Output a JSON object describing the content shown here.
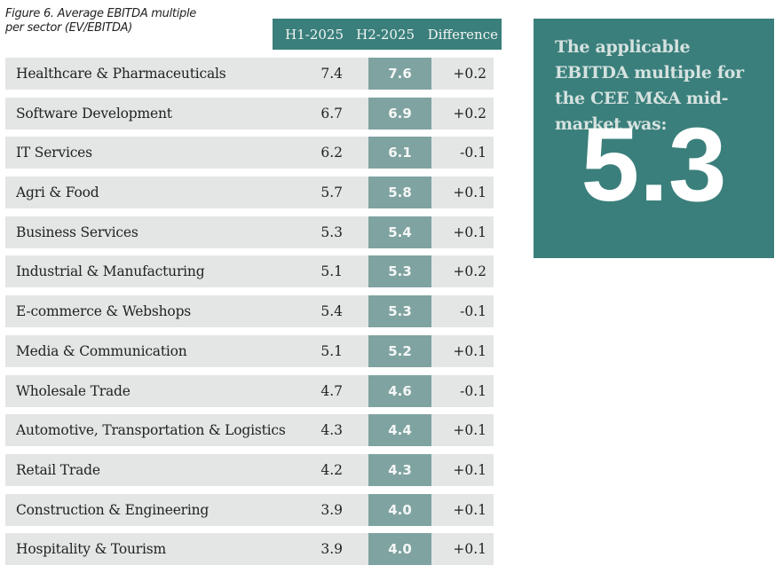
{
  "caption": {
    "line1": "Figure 6. Average EBITDA multiple",
    "line2": "per sector (EV/EBITDA)"
  },
  "header": {
    "col1": "H1-2025",
    "col2": "H2-2025",
    "col3": "Difference"
  },
  "colors": {
    "accent": "#3a7f7b",
    "highlight_column": "#7fa3a0",
    "row_background": "#e3e6e5"
  },
  "rows": [
    {
      "sector": "Healthcare & Pharmaceuticals",
      "h1": "7.4",
      "h2": "7.6",
      "diff": "+0.2"
    },
    {
      "sector": "Software Development",
      "h1": "6.7",
      "h2": "6.9",
      "diff": "+0.2"
    },
    {
      "sector": "IT Services",
      "h1": "6.2",
      "h2": "6.1",
      "diff": "-0.1"
    },
    {
      "sector": "Agri & Food",
      "h1": "5.7",
      "h2": "5.8",
      "diff": "+0.1"
    },
    {
      "sector": "Business Services",
      "h1": "5.3",
      "h2": "5.4",
      "diff": "+0.1"
    },
    {
      "sector": "Industrial & Manufacturing",
      "h1": "5.1",
      "h2": "5.3",
      "diff": "+0.2"
    },
    {
      "sector": "E-commerce & Webshops",
      "h1": "5.4",
      "h2": "5.3",
      "diff": "-0.1"
    },
    {
      "sector": "Media & Communication",
      "h1": "5.1",
      "h2": "5.2",
      "diff": "+0.1"
    },
    {
      "sector": "Wholesale Trade",
      "h1": "4.7",
      "h2": "4.6",
      "diff": "-0.1"
    },
    {
      "sector": "Automotive, Transportation & Logistics",
      "h1": "4.3",
      "h2": "4.4",
      "diff": "+0.1"
    },
    {
      "sector": "Retail Trade",
      "h1": "4.2",
      "h2": "4.3",
      "diff": "+0.1"
    },
    {
      "sector": "Construction & Engineering",
      "h1": "3.9",
      "h2": "4.0",
      "diff": "+0.1"
    },
    {
      "sector": "Hospitality & Tourism",
      "h1": "3.9",
      "h2": "4.0",
      "diff": "+0.1"
    }
  ],
  "panel": {
    "text": "The applicable EBITDA multiple for the CEE M&A mid-market was:",
    "value": "5.3"
  },
  "chart_data": {
    "type": "table",
    "title": "Figure 6. Average EBITDA multiple per sector (EV/EBITDA)",
    "columns": [
      "Sector",
      "H1-2025",
      "H2-2025",
      "Difference"
    ],
    "categories": [
      "Healthcare & Pharmaceuticals",
      "Software Development",
      "IT Services",
      "Agri & Food",
      "Business Services",
      "Industrial & Manufacturing",
      "E-commerce & Webshops",
      "Media & Communication",
      "Wholesale Trade",
      "Automotive, Transportation & Logistics",
      "Retail Trade",
      "Construction & Engineering",
      "Hospitality & Tourism"
    ],
    "series": [
      {
        "name": "H1-2025",
        "values": [
          7.4,
          6.7,
          6.2,
          5.7,
          5.3,
          5.1,
          5.4,
          5.1,
          4.7,
          4.3,
          4.2,
          3.9,
          3.9
        ]
      },
      {
        "name": "H2-2025",
        "values": [
          7.6,
          6.9,
          6.1,
          5.8,
          5.4,
          5.3,
          5.3,
          5.2,
          4.6,
          4.4,
          4.3,
          4.0,
          4.0
        ]
      },
      {
        "name": "Difference",
        "values": [
          0.2,
          0.2,
          -0.1,
          0.1,
          0.1,
          0.2,
          -0.1,
          0.1,
          -0.1,
          0.1,
          0.1,
          0.1,
          0.1
        ]
      }
    ],
    "annotation": "The applicable EBITDA multiple for the CEE M&A mid-market was: 5.3"
  }
}
